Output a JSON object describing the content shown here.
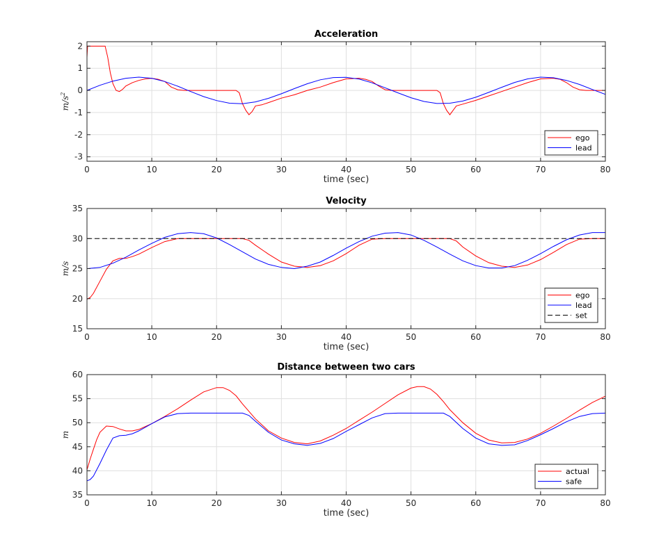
{
  "figure": {
    "subplots": [
      {
        "id": "acceleration",
        "title": "Acceleration",
        "xlabel": "time (sec)",
        "ylabel": "m/s",
        "ylabel_superscript": "2",
        "xlim": [
          0,
          80
        ],
        "ylim": [
          -3.2,
          2.2
        ],
        "xticks": [
          0,
          10,
          20,
          30,
          40,
          50,
          60,
          70,
          80
        ],
        "yticks": [
          -3,
          -2,
          -1,
          0,
          1,
          2
        ],
        "ytick_labels": [
          "-3",
          "-2",
          "-1",
          "0",
          "1",
          "2"
        ],
        "legend": {
          "position": "bottom-right",
          "entries": [
            {
              "label": "ego",
              "color": "#ff0000",
              "style": "solid"
            },
            {
              "label": "lead",
              "color": "#0000ff",
              "style": "solid"
            }
          ]
        }
      },
      {
        "id": "velocity",
        "title": "Velocity",
        "xlabel": "time (sec)",
        "ylabel": "m/s",
        "ylabel_superscript": "",
        "xlim": [
          0,
          80
        ],
        "ylim": [
          15,
          35
        ],
        "xticks": [
          0,
          10,
          20,
          30,
          40,
          50,
          60,
          70,
          80
        ],
        "yticks": [
          15,
          20,
          25,
          30,
          35
        ],
        "ytick_labels": [
          "15",
          "20",
          "25",
          "30",
          "35"
        ],
        "legend": {
          "position": "bottom-right",
          "entries": [
            {
              "label": "ego",
              "color": "#ff0000",
              "style": "solid"
            },
            {
              "label": "lead",
              "color": "#0000ff",
              "style": "solid"
            },
            {
              "label": "set",
              "color": "#000000",
              "style": "dashed"
            }
          ]
        }
      },
      {
        "id": "distance",
        "title": "Distance between two cars",
        "xlabel": "time (sec)",
        "ylabel": "m",
        "ylabel_superscript": "",
        "xlim": [
          0,
          80
        ],
        "ylim": [
          35,
          60
        ],
        "xticks": [
          0,
          10,
          20,
          30,
          40,
          50,
          60,
          70,
          80
        ],
        "yticks": [
          35,
          40,
          45,
          50,
          55,
          60
        ],
        "ytick_labels": [
          "35",
          "40",
          "45",
          "50",
          "55",
          "60"
        ],
        "legend": {
          "position": "bottom-right",
          "entries": [
            {
              "label": "actual",
              "color": "#ff0000",
              "style": "solid"
            },
            {
              "label": "safe",
              "color": "#0000ff",
              "style": "solid"
            }
          ]
        }
      }
    ]
  },
  "chart_data": [
    {
      "type": "line",
      "title": "Acceleration",
      "xlabel": "time (sec)",
      "ylabel": "m/s^2",
      "xlim": [
        0,
        80
      ],
      "ylim": [
        -3.2,
        2.2
      ],
      "grid": true,
      "series": [
        {
          "name": "ego",
          "color": "#ff0000",
          "dash": false,
          "x": [
            0,
            0.1,
            0.3,
            0.5,
            1,
            2,
            2.8,
            3.2,
            3.6,
            4.0,
            4.5,
            5,
            5.5,
            6,
            7,
            8,
            9,
            10,
            11,
            12,
            13,
            14,
            15,
            16,
            17,
            18,
            19,
            20,
            21,
            22,
            23,
            23.5,
            24,
            24.5,
            25,
            25.5,
            26,
            27,
            28,
            30,
            32,
            34,
            36,
            38,
            40,
            42,
            43,
            44,
            45,
            46,
            47,
            48,
            50,
            52,
            53,
            54,
            54.5,
            55,
            55.5,
            56,
            56.5,
            57,
            58,
            60,
            62,
            64,
            66,
            68,
            70,
            72,
            73,
            74,
            75,
            76,
            77,
            78,
            80
          ],
          "y": [
            1.5,
            2.0,
            2.0,
            2.0,
            2.0,
            2.0,
            2.0,
            1.5,
            0.8,
            0.3,
            0.0,
            -0.05,
            0.05,
            0.2,
            0.35,
            0.45,
            0.52,
            0.55,
            0.5,
            0.4,
            0.15,
            0.03,
            0.0,
            0.0,
            0.0,
            0.0,
            0.0,
            0.0,
            0.0,
            0.0,
            0.0,
            -0.1,
            -0.6,
            -0.9,
            -1.1,
            -0.95,
            -0.7,
            -0.65,
            -0.55,
            -0.35,
            -0.2,
            0.0,
            0.15,
            0.35,
            0.52,
            0.55,
            0.5,
            0.4,
            0.2,
            0.03,
            0.0,
            0.0,
            0.0,
            0.0,
            0.0,
            0.0,
            -0.1,
            -0.6,
            -0.9,
            -1.1,
            -0.9,
            -0.7,
            -0.62,
            -0.45,
            -0.25,
            -0.05,
            0.15,
            0.35,
            0.52,
            0.55,
            0.5,
            0.35,
            0.15,
            0.03,
            0.0,
            0.0,
            0.0
          ]
        },
        {
          "name": "lead",
          "color": "#0000ff",
          "dash": false,
          "x": [
            0,
            2,
            4,
            6,
            8,
            10,
            12,
            14,
            16,
            18,
            20,
            22,
            24,
            26,
            28,
            30,
            32,
            34,
            36,
            38,
            40,
            42,
            44,
            46,
            48,
            50,
            52,
            54,
            56,
            58,
            60,
            62,
            64,
            66,
            68,
            70,
            72,
            74,
            76,
            78,
            80
          ],
          "y": [
            0.0,
            0.23,
            0.42,
            0.55,
            0.6,
            0.55,
            0.4,
            0.19,
            -0.05,
            -0.28,
            -0.46,
            -0.58,
            -0.6,
            -0.52,
            -0.36,
            -0.15,
            0.08,
            0.3,
            0.48,
            0.58,
            0.59,
            0.51,
            0.34,
            0.12,
            -0.11,
            -0.33,
            -0.5,
            -0.59,
            -0.58,
            -0.48,
            -0.31,
            -0.09,
            0.14,
            0.36,
            0.52,
            0.6,
            0.57,
            0.45,
            0.27,
            0.04,
            -0.18
          ]
        }
      ]
    },
    {
      "type": "line",
      "title": "Velocity",
      "xlabel": "time (sec)",
      "ylabel": "m/s",
      "xlim": [
        0,
        80
      ],
      "ylim": [
        15,
        35
      ],
      "grid": true,
      "series": [
        {
          "name": "ego",
          "color": "#ff0000",
          "dash": false,
          "x": [
            0,
            0.5,
            1,
            2,
            3,
            4,
            5,
            6,
            7,
            8,
            10,
            12,
            14,
            16,
            18,
            20,
            22,
            24,
            25,
            26,
            28,
            30,
            32,
            34,
            36,
            38,
            40,
            42,
            44,
            46,
            48,
            50,
            52,
            54,
            56,
            57,
            58,
            60,
            62,
            64,
            66,
            68,
            70,
            72,
            74,
            76,
            78,
            80
          ],
          "y": [
            19.9,
            20.2,
            20.9,
            22.9,
            24.9,
            26.3,
            26.7,
            26.7,
            27.0,
            27.4,
            28.5,
            29.5,
            30.0,
            30.0,
            30.0,
            30.0,
            30.0,
            30.0,
            29.7,
            28.9,
            27.4,
            26.1,
            25.4,
            25.2,
            25.5,
            26.3,
            27.5,
            28.9,
            29.9,
            30.0,
            30.0,
            30.0,
            30.0,
            30.0,
            30.0,
            29.6,
            28.6,
            27.1,
            26.0,
            25.4,
            25.2,
            25.6,
            26.5,
            27.7,
            29.0,
            29.9,
            30.0,
            30.0
          ]
        },
        {
          "name": "lead",
          "color": "#0000ff",
          "dash": false,
          "x": [
            0,
            2,
            4,
            6,
            8,
            10,
            12,
            14,
            16,
            18,
            20,
            22,
            24,
            26,
            28,
            30,
            32,
            34,
            36,
            38,
            40,
            42,
            44,
            46,
            48,
            50,
            52,
            54,
            56,
            58,
            60,
            62,
            64,
            66,
            68,
            70,
            72,
            74,
            76,
            78,
            80
          ],
          "y": [
            25.0,
            25.2,
            25.9,
            26.9,
            28.1,
            29.2,
            30.2,
            30.8,
            31.0,
            30.8,
            30.1,
            29.0,
            27.8,
            26.6,
            25.7,
            25.2,
            25.0,
            25.4,
            26.1,
            27.2,
            28.4,
            29.5,
            30.4,
            30.9,
            31.0,
            30.6,
            29.7,
            28.6,
            27.4,
            26.3,
            25.5,
            25.1,
            25.1,
            25.5,
            26.4,
            27.5,
            28.7,
            29.8,
            30.6,
            31.0,
            31.0
          ]
        },
        {
          "name": "set",
          "color": "#000000",
          "dash": true,
          "x": [
            0,
            80
          ],
          "y": [
            30,
            30
          ]
        }
      ]
    },
    {
      "type": "line",
      "title": "Distance between two cars",
      "xlabel": "time (sec)",
      "ylabel": "m",
      "xlim": [
        0,
        80
      ],
      "ylim": [
        35,
        60
      ],
      "grid": true,
      "series": [
        {
          "name": "actual",
          "color": "#ff0000",
          "dash": false,
          "x": [
            0,
            0.5,
            1,
            1.5,
            2,
            3,
            4,
            5,
            6,
            7,
            8,
            10,
            12,
            14,
            16,
            18,
            20,
            21,
            22,
            23,
            24,
            26,
            28,
            30,
            32,
            34,
            36,
            38,
            40,
            42,
            44,
            46,
            48,
            50,
            51,
            52,
            53,
            54,
            55,
            56,
            58,
            60,
            62,
            64,
            66,
            68,
            70,
            72,
            74,
            76,
            78,
            80
          ],
          "y": [
            40.2,
            42.5,
            44.5,
            46.5,
            48.0,
            49.3,
            49.2,
            48.7,
            48.3,
            48.3,
            48.6,
            49.8,
            51.3,
            52.9,
            54.7,
            56.4,
            57.3,
            57.3,
            56.7,
            55.6,
            53.9,
            50.8,
            48.3,
            46.8,
            45.9,
            45.6,
            46.2,
            47.4,
            48.8,
            50.5,
            52.2,
            54.0,
            55.8,
            57.2,
            57.5,
            57.5,
            57.0,
            55.9,
            54.4,
            52.7,
            50.0,
            47.8,
            46.4,
            45.8,
            45.9,
            46.6,
            47.8,
            49.3,
            50.9,
            52.6,
            54.2,
            55.5
          ]
        },
        {
          "name": "safe",
          "color": "#0000ff",
          "dash": false,
          "x": [
            0,
            0.5,
            1,
            2,
            3,
            4,
            5,
            6,
            7,
            8,
            10,
            12,
            14,
            16,
            18,
            20,
            22,
            23,
            24,
            25,
            26,
            28,
            30,
            32,
            34,
            36,
            38,
            40,
            42,
            44,
            46,
            48,
            50,
            52,
            54,
            55,
            56,
            58,
            60,
            62,
            64,
            66,
            68,
            70,
            72,
            74,
            76,
            78,
            80
          ],
          "y": [
            37.9,
            38.2,
            38.9,
            41.5,
            44.3,
            46.8,
            47.3,
            47.4,
            47.7,
            48.3,
            49.8,
            51.2,
            51.9,
            52.0,
            52.0,
            52.0,
            52.0,
            52.0,
            52.0,
            51.5,
            50.3,
            48.0,
            46.4,
            45.6,
            45.3,
            45.7,
            46.7,
            48.2,
            49.6,
            51.0,
            51.9,
            52.0,
            52.0,
            52.0,
            52.0,
            52.0,
            51.3,
            48.8,
            46.8,
            45.6,
            45.3,
            45.4,
            46.3,
            47.5,
            48.8,
            50.2,
            51.3,
            51.9,
            52.0
          ]
        }
      ]
    }
  ]
}
